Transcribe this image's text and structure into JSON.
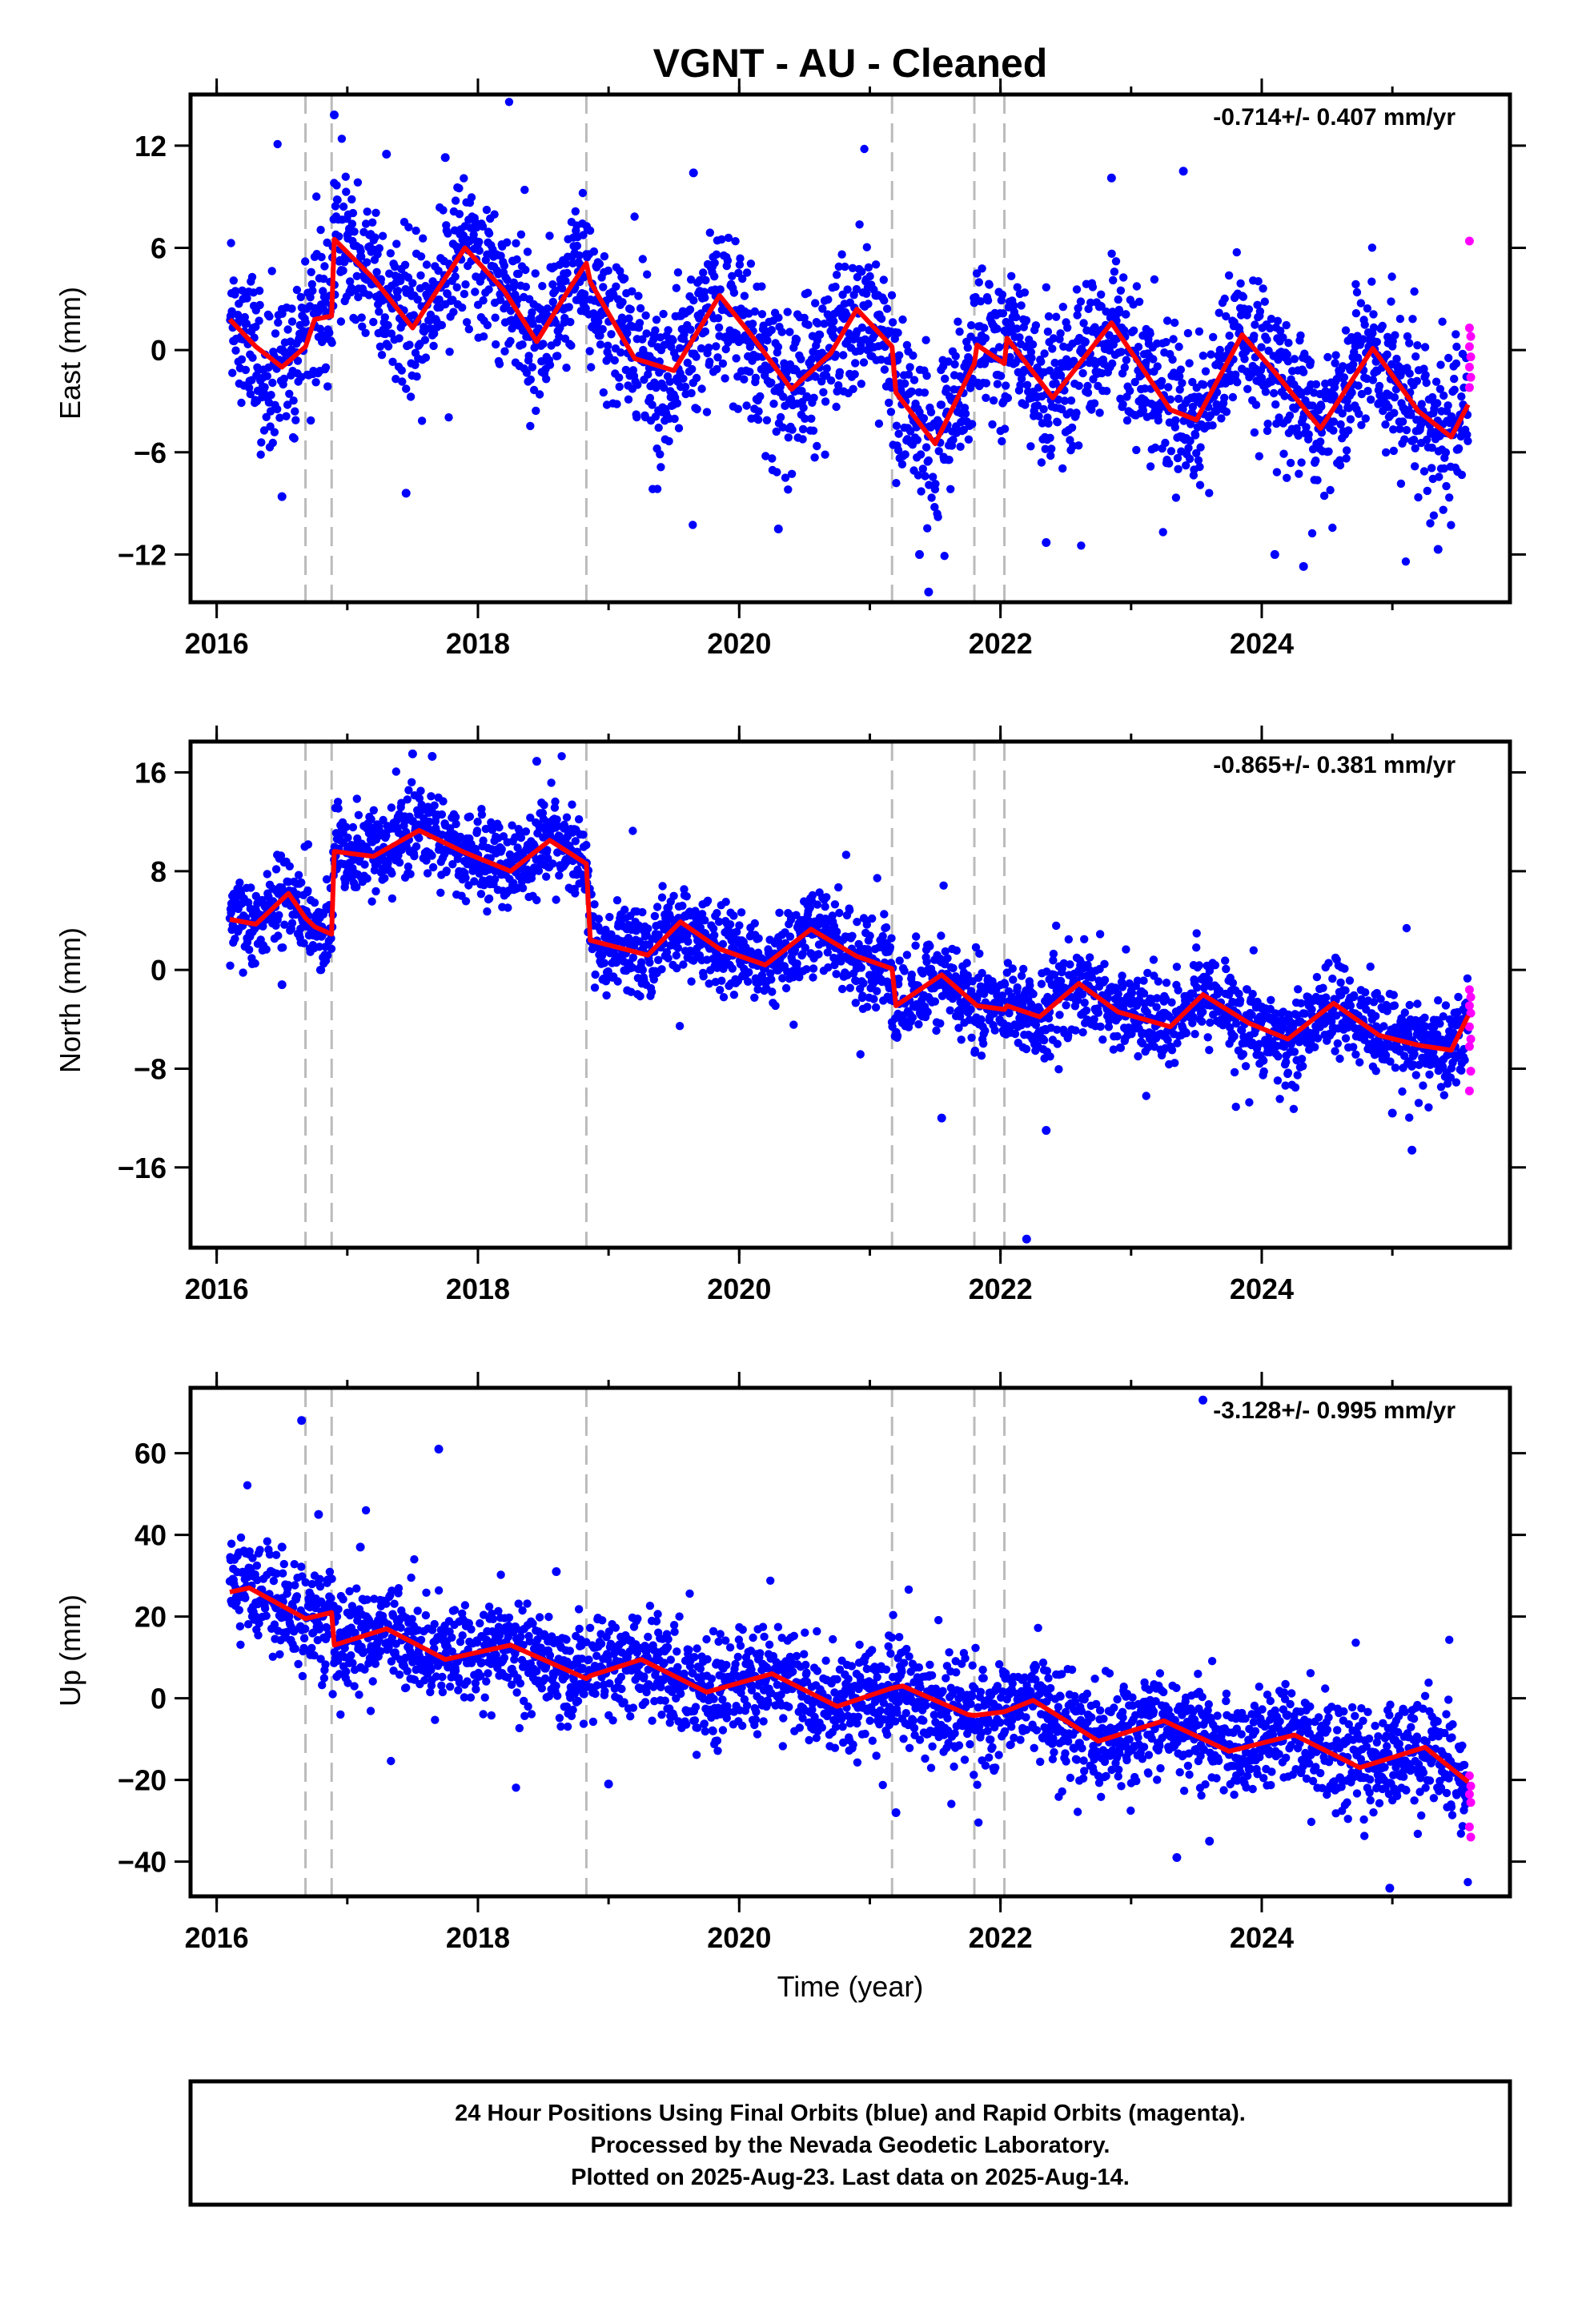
{
  "title": "VGNT  - AU - Cleaned",
  "xlabel": "Time (year)",
  "footer": {
    "line1": "24 Hour Positions Using Final Orbits (blue) and Rapid Orbits (magenta).",
    "line2": "Processed by the Nevada Geodetic Laboratory.",
    "line3": "Plotted on 2025-Aug-23. Last data on 2025-Aug-14."
  },
  "colors": {
    "final_orbits": "#0000ff",
    "rapid_orbits": "#ff00ff",
    "model_fit": "#ff0000",
    "event_lines": "#bbbbbb"
  },
  "chart_data": [
    {
      "type": "scatter",
      "component": "East",
      "ylabel": "East (mm)",
      "rate_label": "-0.714+/- 0.407 mm/yr",
      "xlim": [
        2015.8,
        2025.9
      ],
      "ylim": [
        -14.8,
        15.0
      ],
      "xticks": [
        2016,
        2018,
        2020,
        2022,
        2024
      ],
      "yticks": [
        -12,
        -6,
        0,
        6,
        12
      ],
      "event_lines": [
        2016.68,
        2016.88,
        2018.83,
        2021.17,
        2021.8,
        2022.03
      ],
      "fit_line": {
        "x": [
          2016.1,
          2016.3,
          2016.5,
          2016.68,
          2016.75,
          2016.88,
          2016.9,
          2017.2,
          2017.5,
          2017.9,
          2018.2,
          2018.45,
          2018.7,
          2018.83,
          2018.86,
          2019.2,
          2019.5,
          2019.85,
          2020.1,
          2020.4,
          2020.7,
          2020.9,
          2021.17,
          2021.2,
          2021.5,
          2021.8,
          2021.82,
          2022.03,
          2022.05,
          2022.4,
          2022.85,
          2023.3,
          2023.5,
          2023.85,
          2024.1,
          2024.45,
          2024.85,
          2025.2,
          2025.45,
          2025.58
        ],
        "y": [
          1.8,
          0.2,
          -1.0,
          0.2,
          1.8,
          2.0,
          6.5,
          4.2,
          1.3,
          6.0,
          3.5,
          0.5,
          3.6,
          5.1,
          4.0,
          -0.5,
          -1.2,
          3.2,
          0.8,
          -2.3,
          -0.2,
          2.4,
          0.2,
          -2.5,
          -5.5,
          -0.8,
          0.3,
          -0.8,
          0.7,
          -2.8,
          1.6,
          -3.5,
          -4.1,
          0.9,
          -1.3,
          -4.6,
          0.1,
          -3.6,
          -5.1,
          -3.2
        ]
      },
      "outliers": [
        {
          "x": 2016.9,
          "y": 13.8
        },
        {
          "x": 2017.3,
          "y": 11.5
        },
        {
          "x": 2017.75,
          "y": 11.3
        },
        {
          "x": 2019.65,
          "y": 10.4
        },
        {
          "x": 2023.4,
          "y": 10.5
        },
        {
          "x": 2022.85,
          "y": 10.1
        },
        {
          "x": 2021.45,
          "y": -14.2
        },
        {
          "x": 2021.38,
          "y": -12.0
        },
        {
          "x": 2024.32,
          "y": -12.7
        },
        {
          "x": 2016.5,
          "y": -8.6
        },
        {
          "x": 2017.45,
          "y": -8.4
        },
        {
          "x": 2020.3,
          "y": -10.5
        },
        {
          "x": 2022.35,
          "y": -11.3
        },
        {
          "x": 2025.35,
          "y": -11.7
        },
        {
          "x": 2024.1,
          "y": -12.0
        }
      ],
      "rapid_points": [
        {
          "x": 2025.59,
          "y": 6.4
        },
        {
          "x": 2025.59,
          "y": 1.3
        },
        {
          "x": 2025.6,
          "y": 0.8
        },
        {
          "x": 2025.59,
          "y": 0.2
        },
        {
          "x": 2025.6,
          "y": -0.4
        },
        {
          "x": 2025.59,
          "y": -1.0
        },
        {
          "x": 2025.6,
          "y": -1.6
        },
        {
          "x": 2025.59,
          "y": -2.2
        }
      ]
    },
    {
      "type": "scatter",
      "component": "North",
      "ylabel": "North (mm)",
      "rate_label": "-0.865+/- 0.381 mm/yr",
      "xlim": [
        2015.8,
        2025.9
      ],
      "ylim": [
        -22.5,
        18.5
      ],
      "xticks": [
        2016,
        2018,
        2020,
        2022,
        2024
      ],
      "yticks": [
        -16,
        -8,
        0,
        8,
        16
      ],
      "event_lines": [
        2016.68,
        2016.88,
        2018.83,
        2021.17,
        2021.8,
        2022.03
      ],
      "fit_line": {
        "x": [
          2016.1,
          2016.3,
          2016.55,
          2016.68,
          2016.75,
          2016.88,
          2016.9,
          2017.2,
          2017.55,
          2017.9,
          2018.25,
          2018.55,
          2018.83,
          2018.86,
          2019.3,
          2019.55,
          2019.85,
          2020.2,
          2020.55,
          2020.9,
          2021.17,
          2021.2,
          2021.55,
          2021.8,
          2021.82,
          2022.03,
          2022.05,
          2022.3,
          2022.6,
          2022.9,
          2023.3,
          2023.55,
          2023.9,
          2024.2,
          2024.55,
          2024.9,
          2025.2,
          2025.45,
          2025.58
        ],
        "y": [
          4.1,
          3.7,
          6.2,
          4.2,
          3.5,
          2.9,
          9.6,
          9.2,
          11.3,
          9.5,
          8.0,
          10.5,
          8.6,
          2.4,
          1.2,
          3.9,
          1.7,
          0.4,
          3.3,
          1.1,
          0.1,
          -2.9,
          -0.4,
          -2.7,
          -2.9,
          -3.2,
          -2.9,
          -3.8,
          -1.1,
          -3.4,
          -4.6,
          -2.0,
          -4.3,
          -5.6,
          -2.7,
          -5.3,
          -6.1,
          -6.5,
          -3.7
        ]
      },
      "outliers": [
        {
          "x": 2017.5,
          "y": 17.5
        },
        {
          "x": 2017.65,
          "y": 17.3
        },
        {
          "x": 2018.45,
          "y": 16.9
        },
        {
          "x": 2022.2,
          "y": -21.8
        },
        {
          "x": 2021.55,
          "y": -12.0
        },
        {
          "x": 2022.35,
          "y": -13.0
        },
        {
          "x": 2025.15,
          "y": -14.6
        },
        {
          "x": 2025.0,
          "y": -11.6
        },
        {
          "x": 2016.5,
          "y": -1.2
        }
      ],
      "rapid_points": [
        {
          "x": 2025.59,
          "y": -1.6
        },
        {
          "x": 2025.6,
          "y": -2.2
        },
        {
          "x": 2025.59,
          "y": -2.9
        },
        {
          "x": 2025.6,
          "y": -3.5
        },
        {
          "x": 2025.59,
          "y": -4.6
        },
        {
          "x": 2025.6,
          "y": -5.6
        },
        {
          "x": 2025.59,
          "y": -6.2
        },
        {
          "x": 2025.6,
          "y": -8.2
        },
        {
          "x": 2025.59,
          "y": -9.8
        }
      ]
    },
    {
      "type": "scatter",
      "component": "Up",
      "ylabel": "Up (mm)",
      "rate_label": "-3.128+/- 0.995 mm/yr",
      "xlim": [
        2015.8,
        2025.9
      ],
      "ylim": [
        -48.5,
        76.0
      ],
      "xticks": [
        2016,
        2018,
        2020,
        2022,
        2024
      ],
      "yticks": [
        -40,
        -20,
        0,
        20,
        40,
        60
      ],
      "event_lines": [
        2016.68,
        2016.88,
        2018.83,
        2021.17,
        2021.8,
        2022.03
      ],
      "fit_line": {
        "x": [
          2016.1,
          2016.25,
          2016.68,
          2016.75,
          2016.88,
          2016.9,
          2017.3,
          2017.75,
          2018.25,
          2018.83,
          2018.86,
          2019.25,
          2019.75,
          2020.25,
          2020.75,
          2021.17,
          2021.25,
          2021.75,
          2021.8,
          2022.03,
          2022.25,
          2022.75,
          2023.25,
          2023.75,
          2024.25,
          2024.75,
          2025.25,
          2025.58
        ],
        "y": [
          26.0,
          27.0,
          19.5,
          20.0,
          21.0,
          13.0,
          17.0,
          9.5,
          13.0,
          4.8,
          5.5,
          9.5,
          1.5,
          6.0,
          -2.0,
          2.5,
          3.0,
          -4.0,
          -4.2,
          -3.3,
          -0.5,
          -10.5,
          -5.5,
          -13.0,
          -9.0,
          -17.0,
          -12.0,
          -20.5
        ]
      },
      "outliers": [
        {
          "x": 2016.65,
          "y": 68.0
        },
        {
          "x": 2017.7,
          "y": 61.0
        },
        {
          "x": 2016.78,
          "y": 45.0
        },
        {
          "x": 2017.1,
          "y": 37.0
        },
        {
          "x": 2018.6,
          "y": 31.0
        },
        {
          "x": 2016.5,
          "y": 37.0
        },
        {
          "x": 2024.98,
          "y": -46.5
        },
        {
          "x": 2023.35,
          "y": -39.0
        },
        {
          "x": 2023.6,
          "y": -35.0
        },
        {
          "x": 2019.0,
          "y": -21.0
        },
        {
          "x": 2021.2,
          "y": -28.0
        },
        {
          "x": 2023.55,
          "y": 73.0
        }
      ],
      "rapid_points": [
        {
          "x": 2025.59,
          "y": -19.0
        },
        {
          "x": 2025.6,
          "y": -21.5
        },
        {
          "x": 2025.59,
          "y": -23.5
        },
        {
          "x": 2025.6,
          "y": -25.5
        },
        {
          "x": 2025.59,
          "y": -31.5
        },
        {
          "x": 2025.6,
          "y": -34.0
        }
      ]
    }
  ]
}
